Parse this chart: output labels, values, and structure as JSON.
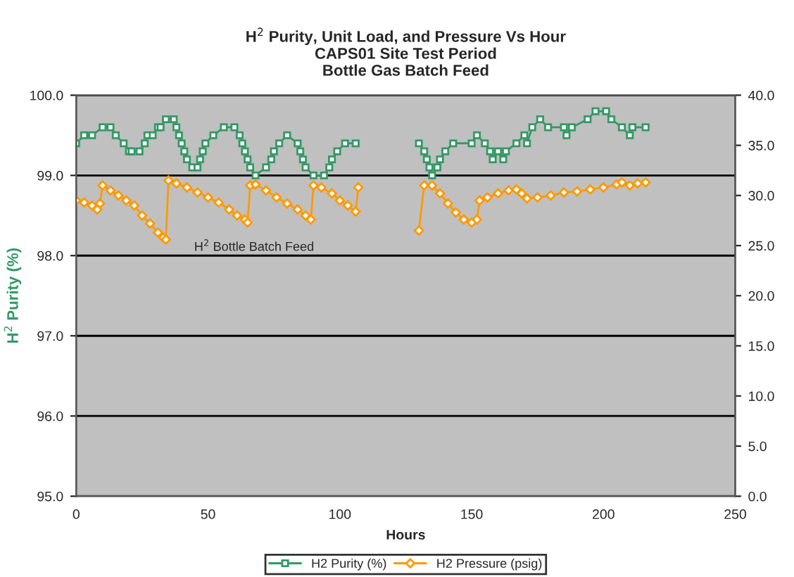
{
  "chart_data": {
    "type": "line",
    "title": "H$^{2}$ Purity, Unit Load, and Pressure Vs Hour\nCAPS01 Site Test Period\nBottle Gas Batch Feed",
    "xlabel": "Hours",
    "ylabel": "H$^{2}$ Purity (%)",
    "annotations": [
      "H$^{2}$ Bottle Batch Feed"
    ],
    "xlim": [
      0,
      250
    ],
    "xticks": [
      0,
      50,
      100,
      150,
      200,
      250
    ],
    "ylim": [
      95,
      100
    ],
    "yticks": [
      {
        "value": 95,
        "label": "95.0"
      },
      {
        "value": 96,
        "label": "96.0"
      },
      {
        "value": 97,
        "label": "97.0"
      },
      {
        "value": 98,
        "label": "98.0"
      },
      {
        "value": 99,
        "label": "99.0"
      },
      {
        "value": 100,
        "label": "100.0"
      }
    ],
    "y2lim": [
      0,
      40
    ],
    "y2ticks": [
      {
        "value": 0,
        "label": "0.0"
      },
      {
        "value": 5,
        "label": "5.0"
      },
      {
        "value": 10,
        "label": "10.0"
      },
      {
        "value": 15,
        "label": "15.0"
      },
      {
        "value": 20,
        "label": "20.0"
      },
      {
        "value": 25,
        "label": "25.0"
      },
      {
        "value": 30,
        "label": "30.0"
      },
      {
        "value": 35,
        "label": "35.0"
      },
      {
        "value": 40,
        "label": "40.0"
      }
    ],
    "grid": "y",
    "legend": "bottom",
    "series": [
      {
        "name": "H2 Purity (%)",
        "color": "#339966",
        "marker": "square",
        "x": [
          0,
          3,
          6,
          10,
          13,
          15,
          18,
          20,
          21,
          24,
          26,
          27,
          29,
          31,
          32,
          34,
          37,
          38,
          39,
          40,
          41,
          42,
          44,
          46,
          47,
          48,
          49,
          52,
          56,
          60,
          62,
          63,
          64,
          65,
          66,
          68,
          72,
          74,
          75,
          77,
          80,
          84,
          85,
          86,
          87,
          90,
          94,
          96,
          97,
          99,
          102,
          106,
          118,
          130,
          132,
          133,
          134,
          135,
          137,
          138,
          140,
          143,
          150,
          152,
          155,
          157,
          158,
          160,
          162,
          163,
          167,
          170,
          171,
          173,
          176,
          179,
          185,
          186,
          188,
          194,
          197,
          201,
          203,
          207,
          210,
          211,
          216
        ],
        "values": [
          99.4,
          99.5,
          99.5,
          99.6,
          99.6,
          99.5,
          99.4,
          99.3,
          99.3,
          99.3,
          99.4,
          99.5,
          99.5,
          99.6,
          99.6,
          99.7,
          99.7,
          99.6,
          99.5,
          99.4,
          99.3,
          99.2,
          99.1,
          99.1,
          99.2,
          99.3,
          99.4,
          99.5,
          99.6,
          99.6,
          99.5,
          99.4,
          99.3,
          99.2,
          99.1,
          99.0,
          99.1,
          99.2,
          99.3,
          99.4,
          99.5,
          99.4,
          99.3,
          99.2,
          99.1,
          99.0,
          99.0,
          99.1,
          99.2,
          99.3,
          99.4,
          99.4,
          null,
          99.4,
          99.3,
          99.2,
          99.1,
          99.0,
          99.1,
          99.2,
          99.3,
          99.4,
          99.4,
          99.5,
          99.4,
          99.3,
          99.2,
          99.3,
          99.2,
          99.3,
          99.4,
          99.5,
          99.4,
          99.6,
          99.7,
          99.6,
          99.6,
          99.5,
          99.6,
          99.7,
          99.8,
          99.8,
          99.7,
          99.6,
          99.5,
          99.6,
          99.6
        ]
      },
      {
        "name": "H2 Pressure (psig)",
        "color": "#ff9900",
        "marker": "diamond",
        "axis": "y2",
        "x": [
          0,
          3,
          6,
          8,
          9,
          10,
          13,
          16,
          19,
          22,
          25,
          28,
          31,
          33,
          34,
          35,
          38,
          42,
          46,
          50,
          54,
          58,
          61,
          64,
          65,
          66,
          68,
          72,
          76,
          80,
          84,
          87,
          89,
          90,
          93,
          97,
          100,
          103,
          106,
          107,
          118,
          130,
          132,
          135,
          138,
          141,
          144,
          147,
          150,
          152,
          153,
          156,
          160,
          164,
          167,
          169,
          171,
          175,
          180,
          185,
          190,
          195,
          200,
          205,
          207,
          210,
          213,
          216
        ],
        "values": [
          29.5,
          29.3,
          29.0,
          28.6,
          29.2,
          31.0,
          30.5,
          30.0,
          29.5,
          29.0,
          28.0,
          27.2,
          26.3,
          25.8,
          25.6,
          31.5,
          31.2,
          30.8,
          30.3,
          29.8,
          29.3,
          28.6,
          28.0,
          27.6,
          27.3,
          31.0,
          31.1,
          30.5,
          29.8,
          29.2,
          28.6,
          28.0,
          27.6,
          31.0,
          30.8,
          30.2,
          29.5,
          29.0,
          28.4,
          30.8,
          null,
          26.5,
          31.0,
          31.0,
          30.2,
          29.2,
          28.3,
          27.6,
          27.3,
          27.6,
          29.5,
          29.8,
          30.2,
          30.5,
          30.6,
          30.2,
          29.7,
          29.8,
          30.0,
          30.3,
          30.4,
          30.6,
          30.8,
          31.1,
          31.3,
          31.0,
          31.2,
          31.3
        ]
      }
    ]
  }
}
